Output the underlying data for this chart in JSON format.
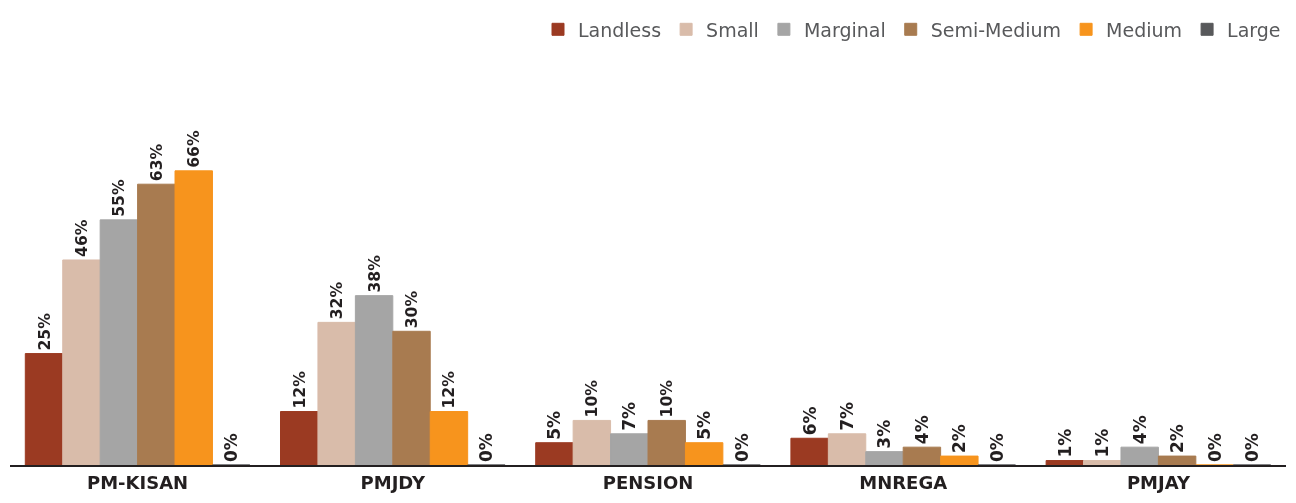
{
  "chart_data": {
    "type": "bar",
    "categories": [
      "PM-KISAN",
      "PMJDY",
      "PENSION",
      "MNREGA",
      "PMJAY"
    ],
    "series": [
      {
        "name": "Landless",
        "color": "#9b3a22",
        "values": [
          25,
          12,
          5,
          6,
          1
        ],
        "value_labels": [
          "25%",
          "12%",
          "5%",
          "6%",
          "1%"
        ]
      },
      {
        "name": "Small",
        "color": "#d9bcaa",
        "values": [
          46,
          32,
          10,
          7,
          1
        ],
        "value_labels": [
          "46%",
          "32%",
          "10%",
          "7%",
          "1%"
        ]
      },
      {
        "name": "Marginal",
        "color": "#a5a5a5",
        "values": [
          55,
          38,
          7,
          3,
          4
        ],
        "value_labels": [
          "55%",
          "38%",
          "7%",
          "3%",
          "4%"
        ]
      },
      {
        "name": "Semi-Medium",
        "color": "#a87b50",
        "values": [
          63,
          30,
          10,
          4,
          2
        ],
        "value_labels": [
          "63%",
          "30%",
          "10%",
          "4%",
          "2%"
        ]
      },
      {
        "name": "Medium",
        "color": "#f7941d",
        "values": [
          66,
          12,
          5,
          2,
          0
        ],
        "value_labels": [
          "66%",
          "12%",
          "5%",
          "2%",
          "0%"
        ]
      },
      {
        "name": "Large",
        "color": "#58595b",
        "values": [
          0,
          0,
          0,
          0,
          0
        ],
        "value_labels": [
          "0%",
          "0%",
          "0%",
          "0%",
          "0%"
        ]
      }
    ],
    "legend": "top right"
  }
}
